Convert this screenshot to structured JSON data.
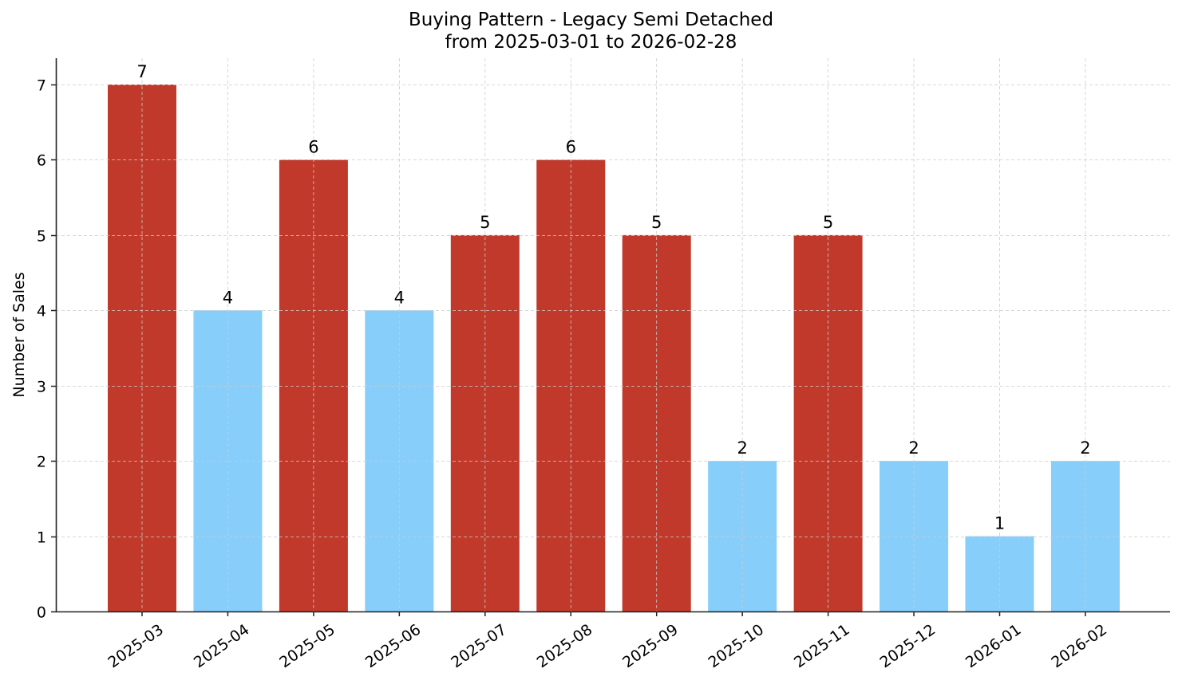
{
  "chart_data": {
    "type": "bar",
    "title": "Buying Pattern - Legacy Semi Detached",
    "subtitle": "from 2025-03-01 to 2026-02-28",
    "xlabel": "",
    "ylabel": "Number of Sales",
    "categories": [
      "2025-03",
      "2025-04",
      "2025-05",
      "2025-06",
      "2025-07",
      "2025-08",
      "2025-09",
      "2025-10",
      "2025-11",
      "2025-12",
      "2026-01",
      "2026-02"
    ],
    "values": [
      7,
      4,
      6,
      4,
      5,
      6,
      5,
      2,
      5,
      2,
      1,
      2
    ],
    "bar_colors": [
      "#C0392B",
      "#87CEFA",
      "#C0392B",
      "#87CEFA",
      "#C0392B",
      "#C0392B",
      "#C0392B",
      "#87CEFA",
      "#C0392B",
      "#87CEFA",
      "#87CEFA",
      "#87CEFA"
    ],
    "yticks": [
      0,
      1,
      2,
      3,
      4,
      5,
      6,
      7
    ],
    "ylim": [
      0,
      7.35
    ],
    "grid": true,
    "legend": null,
    "data_labels": true
  },
  "colors": {
    "high": "#C0392B",
    "low": "#87CEFA",
    "grid": "#cccccc",
    "axis": "#222222"
  }
}
